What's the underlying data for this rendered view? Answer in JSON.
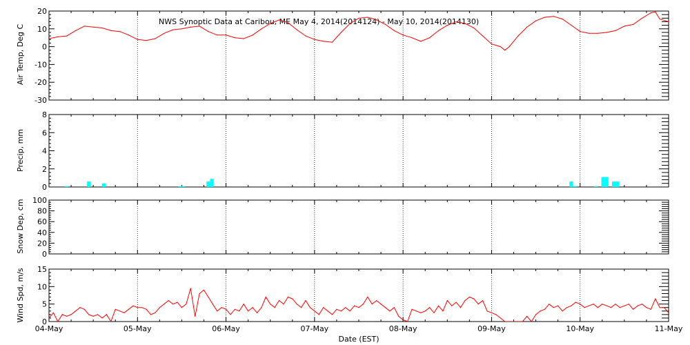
{
  "chart_data": {
    "type": "line",
    "title": "NWS Synoptic Data at Caribou, ME   May  4, 2014(2014124) - May 10, 2014(2014130)",
    "xlabel": "Date (EST)",
    "x_tick_labels": [
      "04-May",
      "05-May",
      "06-May",
      "07-May",
      "08-May",
      "09-May",
      "10-May",
      "11-May"
    ],
    "x_range_days": [
      0,
      7
    ],
    "panels": [
      {
        "name": "air-temp",
        "ylabel": "Air Temp, Deg C",
        "ylim": [
          -30,
          20
        ],
        "yticks": [
          -30,
          -20,
          -10,
          0,
          10,
          20
        ],
        "series_type": "line",
        "color": "#ff0000",
        "points": [
          [
            0.0,
            4.5
          ],
          [
            0.1,
            5.5
          ],
          [
            0.2,
            6.0
          ],
          [
            0.3,
            9.0
          ],
          [
            0.4,
            11.5
          ],
          [
            0.5,
            11.0
          ],
          [
            0.6,
            10.5
          ],
          [
            0.7,
            9.0
          ],
          [
            0.8,
            8.5
          ],
          [
            0.9,
            6.5
          ],
          [
            1.0,
            4.0
          ],
          [
            1.1,
            3.5
          ],
          [
            1.2,
            4.5
          ],
          [
            1.3,
            7.5
          ],
          [
            1.4,
            9.5
          ],
          [
            1.5,
            10.0
          ],
          [
            1.6,
            11.0
          ],
          [
            1.7,
            11.5
          ],
          [
            1.8,
            8.5
          ],
          [
            1.9,
            6.5
          ],
          [
            2.0,
            6.5
          ],
          [
            2.1,
            5.0
          ],
          [
            2.2,
            4.5
          ],
          [
            2.3,
            6.5
          ],
          [
            2.4,
            10.0
          ],
          [
            2.5,
            13.0
          ],
          [
            2.6,
            15.0
          ],
          [
            2.7,
            13.5
          ],
          [
            2.8,
            9.5
          ],
          [
            2.9,
            6.0
          ],
          [
            3.0,
            4.0
          ],
          [
            3.1,
            3.0
          ],
          [
            3.2,
            2.5
          ],
          [
            3.3,
            8.0
          ],
          [
            3.4,
            13.0
          ],
          [
            3.5,
            16.0
          ],
          [
            3.6,
            16.5
          ],
          [
            3.7,
            15.0
          ],
          [
            3.8,
            12.5
          ],
          [
            3.9,
            9.0
          ],
          [
            4.0,
            6.5
          ],
          [
            4.1,
            5.0
          ],
          [
            4.2,
            3.0
          ],
          [
            4.3,
            5.0
          ],
          [
            4.4,
            9.0
          ],
          [
            4.5,
            12.0
          ],
          [
            4.6,
            14.0
          ],
          [
            4.7,
            13.0
          ],
          [
            4.8,
            10.5
          ],
          [
            4.9,
            6.0
          ],
          [
            5.0,
            1.5
          ],
          [
            5.1,
            0.0
          ],
          [
            5.15,
            -2.0
          ],
          [
            5.2,
            0.0
          ],
          [
            5.3,
            6.0
          ],
          [
            5.4,
            11.0
          ],
          [
            5.5,
            14.5
          ],
          [
            5.6,
            16.5
          ],
          [
            5.7,
            17.0
          ],
          [
            5.8,
            15.5
          ],
          [
            5.9,
            12.0
          ],
          [
            6.0,
            8.5
          ],
          [
            6.1,
            7.5
          ],
          [
            6.2,
            7.5
          ],
          [
            6.3,
            8.0
          ],
          [
            6.4,
            9.0
          ],
          [
            6.5,
            11.5
          ],
          [
            6.6,
            12.5
          ],
          [
            6.7,
            16.0
          ],
          [
            6.8,
            19.0
          ],
          [
            6.85,
            19.5
          ],
          [
            6.9,
            15.5
          ],
          [
            7.0,
            14.0
          ]
        ]
      },
      {
        "name": "precip",
        "ylabel": "Precip, mm",
        "ylim": [
          0,
          8
        ],
        "yticks": [
          0,
          2,
          4,
          6,
          8
        ],
        "series_type": "bar",
        "bar_width_days": 0.04,
        "color": "#00ffff",
        "points": [
          [
            0.2,
            0.1
          ],
          [
            0.45,
            0.6
          ],
          [
            0.62,
            0.4
          ],
          [
            1.48,
            0.1
          ],
          [
            1.52,
            0.1
          ],
          [
            1.8,
            0.6
          ],
          [
            1.84,
            0.9
          ],
          [
            5.9,
            0.6
          ],
          [
            5.94,
            0.1
          ],
          [
            6.18,
            0.1
          ],
          [
            6.26,
            1.1
          ],
          [
            6.3,
            1.1
          ],
          [
            6.38,
            0.6
          ],
          [
            6.42,
            0.6
          ]
        ]
      },
      {
        "name": "snow-depth",
        "ylabel": "Snow Dep, cm",
        "ylim": [
          0,
          100
        ],
        "yticks": [
          0,
          20,
          40,
          60,
          80,
          100
        ],
        "series_type": "line",
        "color": "#ff0000",
        "points": []
      },
      {
        "name": "wind-speed",
        "ylabel": "Wind Spd, m/s",
        "ylim": [
          0,
          15
        ],
        "yticks": [
          0,
          5,
          10,
          15
        ],
        "series_type": "line",
        "color": "#ff0000",
        "points": [
          [
            0.0,
            1.0
          ],
          [
            0.05,
            2.5
          ],
          [
            0.1,
            0.0
          ],
          [
            0.15,
            2.0
          ],
          [
            0.2,
            1.5
          ],
          [
            0.25,
            2.0
          ],
          [
            0.3,
            3.0
          ],
          [
            0.35,
            4.0
          ],
          [
            0.4,
            3.5
          ],
          [
            0.45,
            2.0
          ],
          [
            0.5,
            1.5
          ],
          [
            0.55,
            2.0
          ],
          [
            0.6,
            1.0
          ],
          [
            0.65,
            2.0
          ],
          [
            0.7,
            0.0
          ],
          [
            0.75,
            3.5
          ],
          [
            0.8,
            3.0
          ],
          [
            0.85,
            2.5
          ],
          [
            0.9,
            3.5
          ],
          [
            0.95,
            4.5
          ],
          [
            1.0,
            4.0
          ],
          [
            1.05,
            4.0
          ],
          [
            1.1,
            3.5
          ],
          [
            1.15,
            2.0
          ],
          [
            1.2,
            2.5
          ],
          [
            1.25,
            4.0
          ],
          [
            1.3,
            5.0
          ],
          [
            1.35,
            6.0
          ],
          [
            1.4,
            5.0
          ],
          [
            1.45,
            5.5
          ],
          [
            1.5,
            4.0
          ],
          [
            1.55,
            5.0
          ],
          [
            1.6,
            9.5
          ],
          [
            1.65,
            1.5
          ],
          [
            1.7,
            8.0
          ],
          [
            1.75,
            9.0
          ],
          [
            1.8,
            7.0
          ],
          [
            1.85,
            5.0
          ],
          [
            1.9,
            3.0
          ],
          [
            1.95,
            4.0
          ],
          [
            2.0,
            3.5
          ],
          [
            2.05,
            2.0
          ],
          [
            2.1,
            3.5
          ],
          [
            2.15,
            3.0
          ],
          [
            2.2,
            5.0
          ],
          [
            2.25,
            3.0
          ],
          [
            2.3,
            4.0
          ],
          [
            2.35,
            2.5
          ],
          [
            2.4,
            4.0
          ],
          [
            2.45,
            7.0
          ],
          [
            2.5,
            5.0
          ],
          [
            2.55,
            4.0
          ],
          [
            2.6,
            6.0
          ],
          [
            2.65,
            5.0
          ],
          [
            2.7,
            7.0
          ],
          [
            2.75,
            6.5
          ],
          [
            2.8,
            5.0
          ],
          [
            2.85,
            4.0
          ],
          [
            2.9,
            6.0
          ],
          [
            2.95,
            4.0
          ],
          [
            3.0,
            3.0
          ],
          [
            3.05,
            2.0
          ],
          [
            3.1,
            4.0
          ],
          [
            3.15,
            3.0
          ],
          [
            3.2,
            2.0
          ],
          [
            3.25,
            3.5
          ],
          [
            3.3,
            3.0
          ],
          [
            3.35,
            4.0
          ],
          [
            3.4,
            3.0
          ],
          [
            3.45,
            4.5
          ],
          [
            3.5,
            4.0
          ],
          [
            3.55,
            5.0
          ],
          [
            3.6,
            7.0
          ],
          [
            3.65,
            5.0
          ],
          [
            3.7,
            6.0
          ],
          [
            3.75,
            5.0
          ],
          [
            3.8,
            4.0
          ],
          [
            3.85,
            3.0
          ],
          [
            3.9,
            4.0
          ],
          [
            3.95,
            1.5
          ],
          [
            4.0,
            0.5
          ],
          [
            4.05,
            0.0
          ],
          [
            4.1,
            3.5
          ],
          [
            4.15,
            3.0
          ],
          [
            4.2,
            2.5
          ],
          [
            4.25,
            3.0
          ],
          [
            4.3,
            4.0
          ],
          [
            4.35,
            2.5
          ],
          [
            4.4,
            4.5
          ],
          [
            4.45,
            3.0
          ],
          [
            4.5,
            6.0
          ],
          [
            4.55,
            4.5
          ],
          [
            4.6,
            5.5
          ],
          [
            4.65,
            4.0
          ],
          [
            4.7,
            6.0
          ],
          [
            4.75,
            7.0
          ],
          [
            4.8,
            6.5
          ],
          [
            4.85,
            5.0
          ],
          [
            4.9,
            6.0
          ],
          [
            4.95,
            3.0
          ],
          [
            5.0,
            2.5
          ],
          [
            5.05,
            2.0
          ],
          [
            5.1,
            1.0
          ],
          [
            5.15,
            0.0
          ],
          [
            5.2,
            0.0
          ],
          [
            5.25,
            0.0
          ],
          [
            5.3,
            0.0
          ],
          [
            5.35,
            0.0
          ],
          [
            5.4,
            1.5
          ],
          [
            5.45,
            0.0
          ],
          [
            5.5,
            2.0
          ],
          [
            5.55,
            3.0
          ],
          [
            5.6,
            3.5
          ],
          [
            5.65,
            5.0
          ],
          [
            5.7,
            4.0
          ],
          [
            5.75,
            4.5
          ],
          [
            5.8,
            3.0
          ],
          [
            5.85,
            4.0
          ],
          [
            5.9,
            4.5
          ],
          [
            5.95,
            5.5
          ],
          [
            6.0,
            5.0
          ],
          [
            6.05,
            4.0
          ],
          [
            6.1,
            4.5
          ],
          [
            6.15,
            5.0
          ],
          [
            6.2,
            4.0
          ],
          [
            6.25,
            5.0
          ],
          [
            6.3,
            4.5
          ],
          [
            6.35,
            4.0
          ],
          [
            6.4,
            5.0
          ],
          [
            6.45,
            4.0
          ],
          [
            6.5,
            4.5
          ],
          [
            6.55,
            5.0
          ],
          [
            6.6,
            3.5
          ],
          [
            6.65,
            4.5
          ],
          [
            6.7,
            5.0
          ],
          [
            6.75,
            4.0
          ],
          [
            6.8,
            3.5
          ],
          [
            6.85,
            6.5
          ],
          [
            6.9,
            4.0
          ],
          [
            6.95,
            4.0
          ],
          [
            7.0,
            2.5
          ]
        ]
      }
    ]
  }
}
